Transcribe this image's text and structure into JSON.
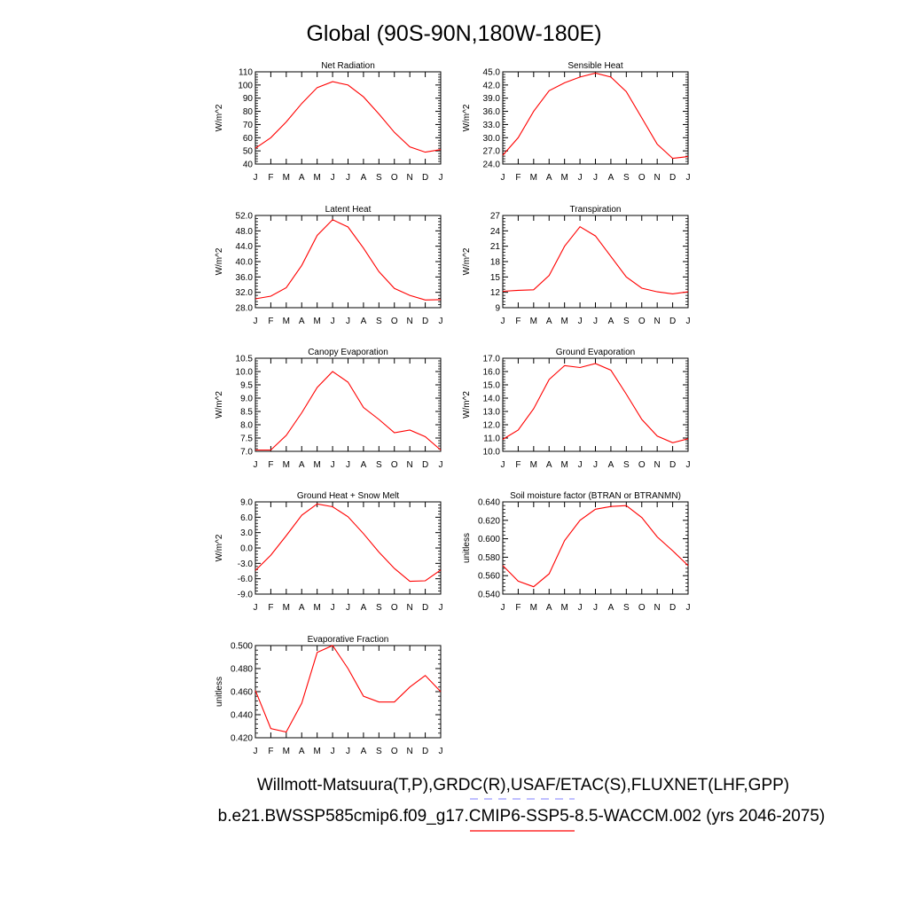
{
  "title": "Global (90S-90N,180W-180E)",
  "months": [
    "J",
    "F",
    "M",
    "A",
    "M",
    "J",
    "J",
    "A",
    "S",
    "O",
    "N",
    "D",
    "J"
  ],
  "legend": {
    "obs_text": "Willmott-Matsuura(T,P),GRDC(R),USAF/ETAC(S),FLUXNET(LHF,GPP)",
    "model_text": "b.e21.BWSSP585cmip6.f09_g17.CMIP6-SSP5-8.5-WACCM.002 (yrs 2046-2075)",
    "obs_color": "#8080ff",
    "model_color": "#ff0000"
  },
  "chart_data": [
    {
      "type": "line",
      "title": "Net Radiation",
      "ylabel": "W/m^2",
      "ylim": [
        40,
        110
      ],
      "yticks": [
        "40",
        "50",
        "60",
        "70",
        "80",
        "90",
        "100",
        "110"
      ],
      "x": [
        "J",
        "F",
        "M",
        "A",
        "M",
        "J",
        "J",
        "A",
        "S",
        "O",
        "N",
        "D",
        "J"
      ],
      "series": [
        {
          "color": "#ff0000",
          "values": [
            52,
            60,
            72,
            86,
            98,
            102.5,
            100,
            91,
            78,
            64,
            53,
            49,
            51
          ]
        }
      ]
    },
    {
      "type": "line",
      "title": "Sensible Heat",
      "ylabel": "W/m^2",
      "ylim": [
        24,
        45
      ],
      "yticks": [
        "24.0",
        "27.0",
        "30.0",
        "33.0",
        "36.0",
        "39.0",
        "42.0",
        "45.0"
      ],
      "x": [
        "J",
        "F",
        "M",
        "A",
        "M",
        "J",
        "J",
        "A",
        "S",
        "O",
        "N",
        "D",
        "J"
      ],
      "series": [
        {
          "color": "#ff0000",
          "values": [
            26,
            30,
            36,
            40.7,
            42.5,
            43.8,
            44.7,
            43.8,
            40.5,
            34.5,
            28.5,
            25.3,
            25.7
          ]
        }
      ]
    },
    {
      "type": "line",
      "title": "Latent Heat",
      "ylabel": "W/m^2",
      "ylim": [
        28,
        52
      ],
      "yticks": [
        "28.0",
        "32.0",
        "36.0",
        "40.0",
        "44.0",
        "48.0",
        "52.0"
      ],
      "x": [
        "J",
        "F",
        "M",
        "A",
        "M",
        "J",
        "J",
        "A",
        "S",
        "O",
        "N",
        "D",
        "J"
      ],
      "series": [
        {
          "color": "#ff0000",
          "values": [
            30.3,
            31,
            33.2,
            39,
            46.8,
            50.9,
            49,
            43.5,
            37.4,
            33,
            31.2,
            30,
            30.1
          ]
        }
      ]
    },
    {
      "type": "line",
      "title": "Transpiration",
      "ylabel": "W/m^2",
      "ylim": [
        9,
        27
      ],
      "yticks": [
        "9",
        "12",
        "15",
        "18",
        "21",
        "24",
        "27"
      ],
      "x": [
        "J",
        "F",
        "M",
        "A",
        "M",
        "J",
        "J",
        "A",
        "S",
        "O",
        "N",
        "D",
        "J"
      ],
      "series": [
        {
          "color": "#ff0000",
          "values": [
            12.2,
            12.4,
            12.5,
            15.3,
            21,
            24.8,
            23,
            19,
            15,
            12.8,
            12.1,
            11.7,
            12.1
          ]
        }
      ]
    },
    {
      "type": "line",
      "title": "Canopy Evaporation",
      "ylabel": "W/m^2",
      "ylim": [
        7,
        10.5
      ],
      "yticks": [
        "7.0",
        "7.5",
        "8.0",
        "8.5",
        "9.0",
        "9.5",
        "10.0",
        "10.5"
      ],
      "x": [
        "J",
        "F",
        "M",
        "A",
        "M",
        "J",
        "J",
        "A",
        "S",
        "O",
        "N",
        "D",
        "J"
      ],
      "series": [
        {
          "color": "#ff0000",
          "values": [
            7.05,
            7.05,
            7.6,
            8.45,
            9.4,
            10,
            9.6,
            8.65,
            8.2,
            7.7,
            7.8,
            7.55,
            7.05
          ]
        }
      ]
    },
    {
      "type": "line",
      "title": "Ground Evaporation",
      "ylabel": "W/m^2",
      "ylim": [
        10,
        17
      ],
      "yticks": [
        "10.0",
        "11.0",
        "12.0",
        "13.0",
        "14.0",
        "15.0",
        "16.0",
        "17.0"
      ],
      "x": [
        "J",
        "F",
        "M",
        "A",
        "M",
        "J",
        "J",
        "A",
        "S",
        "O",
        "N",
        "D",
        "J"
      ],
      "series": [
        {
          "color": "#ff0000",
          "values": [
            10.9,
            11.6,
            13.2,
            15.4,
            16.45,
            16.3,
            16.6,
            16.1,
            14.3,
            12.4,
            11.15,
            10.65,
            10.95
          ]
        }
      ]
    },
    {
      "type": "line",
      "title": "Ground Heat + Snow Melt",
      "ylabel": "W/m^2",
      "ylim": [
        -9,
        9
      ],
      "yticks": [
        "-9.0",
        "-6.0",
        "-3.0",
        "0.0",
        "3.0",
        "6.0",
        "9.0"
      ],
      "x": [
        "J",
        "F",
        "M",
        "A",
        "M",
        "J",
        "J",
        "A",
        "S",
        "O",
        "N",
        "D",
        "J"
      ],
      "series": [
        {
          "color": "#ff0000",
          "values": [
            -4.4,
            -1.4,
            2.4,
            6.4,
            8.6,
            8.05,
            6.1,
            2.8,
            -0.8,
            -4,
            -6.5,
            -6.4,
            -4.3
          ]
        }
      ]
    },
    {
      "type": "line",
      "title": "Soil moisture factor (BTRAN or BTRANMN)",
      "ylabel": "unitless",
      "ylim": [
        0.54,
        0.64
      ],
      "yticks": [
        "0.540",
        "0.560",
        "0.580",
        "0.600",
        "0.620",
        "0.640"
      ],
      "x": [
        "J",
        "F",
        "M",
        "A",
        "M",
        "J",
        "J",
        "A",
        "S",
        "O",
        "N",
        "D",
        "J"
      ],
      "series": [
        {
          "color": "#ff0000",
          "values": [
            0.571,
            0.554,
            0.548,
            0.562,
            0.598,
            0.62,
            0.632,
            0.635,
            0.636,
            0.623,
            0.602,
            0.587,
            0.571
          ]
        }
      ]
    },
    {
      "type": "line",
      "title": "Evaporative Fraction",
      "ylabel": "unitless",
      "ylim": [
        0.42,
        0.5
      ],
      "yticks": [
        "0.420",
        "0.440",
        "0.460",
        "0.480",
        "0.500"
      ],
      "x": [
        "J",
        "F",
        "M",
        "A",
        "M",
        "J",
        "J",
        "A",
        "S",
        "O",
        "N",
        "D",
        "J"
      ],
      "series": [
        {
          "color": "#ff0000",
          "values": [
            0.461,
            0.428,
            0.425,
            0.45,
            0.494,
            0.5,
            0.48,
            0.456,
            0.451,
            0.451,
            0.464,
            0.474,
            0.46
          ]
        }
      ]
    }
  ]
}
